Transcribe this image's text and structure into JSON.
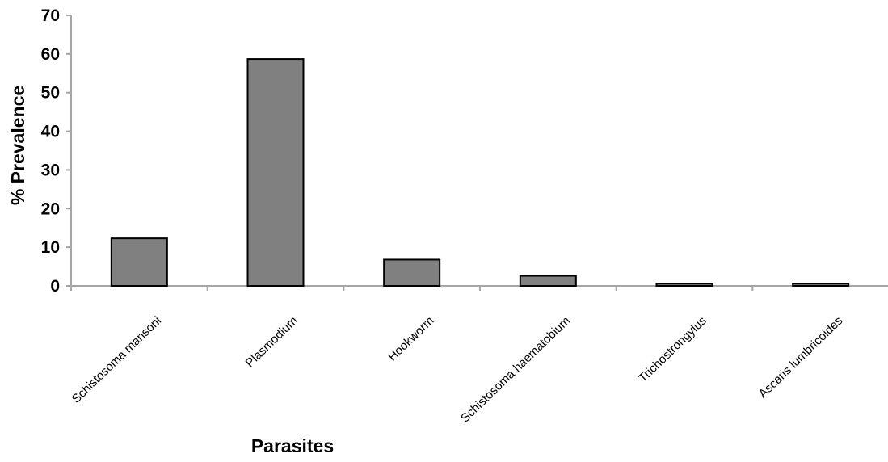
{
  "chart_data": {
    "type": "bar",
    "categories": [
      "Schistosoma mansoni",
      "Plasmodium",
      "Hookworm",
      "Schistosoma haematobium",
      "Trichostrongylus",
      "Ascaris lumbricoides"
    ],
    "series": [
      {
        "values": [
          12.3,
          58.7,
          6.8,
          2.6,
          0.6,
          0.6
        ]
      }
    ],
    "title": "",
    "xlabel": "Parasites",
    "ylabel": "% Prevalence",
    "ylim": [
      0,
      70
    ],
    "yticks": [
      0,
      10,
      20,
      30,
      40,
      50,
      60,
      70
    ],
    "grid": false,
    "colors": {
      "bar_fill": "#808080",
      "bar_stroke": "#000000",
      "axis": "#a6a6a6"
    }
  }
}
